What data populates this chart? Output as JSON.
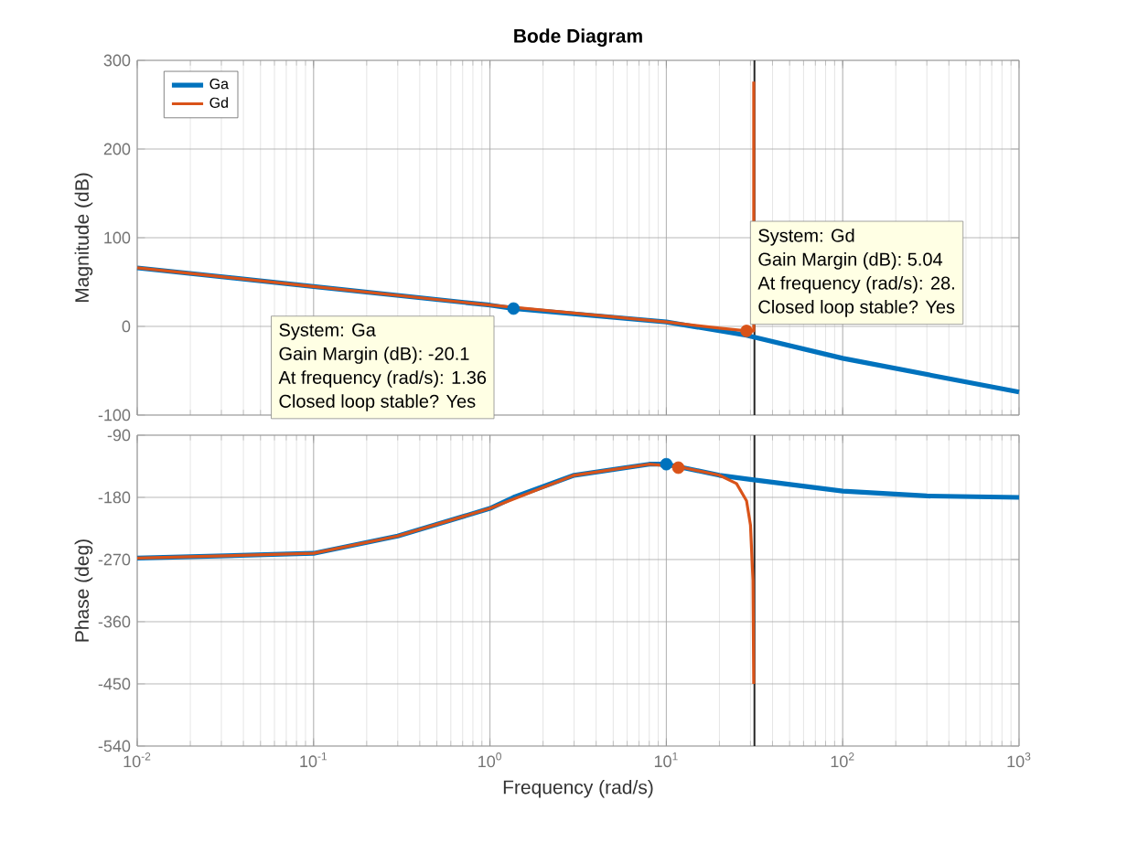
{
  "chart_data": [
    {
      "type": "line",
      "title": "Bode Diagram",
      "ylabel": "Magnitude (dB)",
      "log": "x",
      "grid": true,
      "legend": "top left",
      "tick_labels": "y",
      "xlim": [
        0.01,
        1000
      ],
      "xticks": [
        0.01,
        0.1,
        1,
        10,
        100,
        1000
      ],
      "ylim": [
        -100,
        300
      ],
      "yticks": [
        -100,
        0,
        100,
        200,
        300
      ],
      "ref_lines": [
        {
          "axis": "x",
          "value": 31.6,
          "color": "#262626"
        }
      ],
      "series": [
        {
          "name": "Ga",
          "color": "#0072bd",
          "x": [
            0.01,
            0.1,
            1,
            1.36,
            10,
            28.5,
            100,
            1000
          ],
          "values": [
            66,
            45,
            24,
            20.1,
            5,
            -10,
            -36,
            -74
          ]
        },
        {
          "name": "Gd",
          "color": "#d95319",
          "x": [
            0.01,
            0.1,
            1,
            10,
            20,
            28.5,
            31.3,
            31.3
          ],
          "values": [
            66,
            45,
            24,
            5,
            -2,
            -5.04,
            -5,
            276
          ]
        },
        {
          "type": "scatter",
          "color": "#0072bd",
          "x": [
            1.36
          ],
          "values": [
            20.1
          ]
        },
        {
          "type": "scatter",
          "color": "#d95319",
          "x": [
            28.5
          ],
          "values": [
            -5.04
          ]
        }
      ],
      "annotations": [
        "System: Ga",
        "Gain Margin (dB): -20.1",
        "At frequency (rad/s): 1.36",
        "Closed loop stable? Yes",
        "System: Gd",
        "Gain Margin (dB): 5.04",
        "At frequency (rad/s): 28.",
        "Closed loop stable? Yes"
      ]
    },
    {
      "type": "line",
      "ylabel": "Phase (deg)",
      "xlabel": "Frequency  (rad/s)",
      "log": "x",
      "grid": true,
      "xlim": [
        0.01,
        1000
      ],
      "xticks": [
        {
          "value": 0.01,
          "label": "10$^{-2}$"
        },
        {
          "value": 0.1,
          "label": "10$^{-1}$"
        },
        {
          "value": 1,
          "label": "10$^{0}$"
        },
        {
          "value": 10,
          "label": "10$^{1}$"
        },
        {
          "value": 100,
          "label": "10$^{2}$"
        },
        {
          "value": 1000,
          "label": "10$^{3}$"
        }
      ],
      "ylim": [
        -540,
        -90
      ],
      "yticks": [
        -540,
        -450,
        -360,
        -270,
        -180,
        -90
      ],
      "ref_lines": [
        {
          "axis": "x",
          "value": 31.6,
          "color": "#262626"
        }
      ],
      "series": [
        {
          "color": "#0072bd",
          "x": [
            0.01,
            0.1,
            0.3,
            1,
            1.36,
            3,
            8,
            10,
            20,
            30,
            100,
            300,
            1000
          ],
          "values": [
            -268,
            -261,
            -236,
            -196,
            -180,
            -148,
            -132,
            -132,
            -148,
            -154,
            -171,
            -178,
            -180
          ]
        },
        {
          "color": "#d95319",
          "x": [
            0.01,
            0.1,
            0.3,
            1,
            3,
            8,
            12,
            20,
            25,
            28.5,
            30,
            31,
            31.3
          ],
          "values": [
            -268,
            -261,
            -236,
            -196,
            -148,
            -132,
            -136,
            -148,
            -160,
            -185,
            -220,
            -300,
            -450
          ]
        },
        {
          "type": "scatter",
          "color": "#0072bd",
          "x": [
            10
          ],
          "values": [
            -132
          ]
        },
        {
          "type": "scatter",
          "color": "#d95319",
          "x": [
            11.7
          ],
          "values": [
            -137
          ]
        }
      ]
    }
  ]
}
